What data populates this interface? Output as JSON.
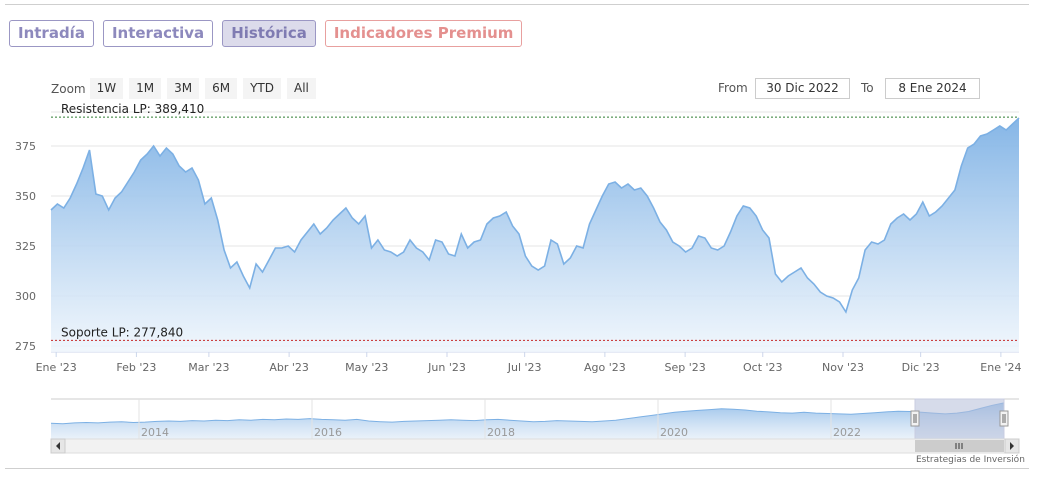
{
  "tabs": [
    {
      "label": "Intradía",
      "style": "normal"
    },
    {
      "label": "Interactiva",
      "style": "normal"
    },
    {
      "label": "Histórica",
      "style": "active"
    },
    {
      "label": "Indicadores Premium",
      "style": "premium"
    }
  ],
  "range_selector": {
    "zoom_label": "Zoom",
    "buttons": [
      "1W",
      "1M",
      "3M",
      "6M",
      "YTD",
      "All"
    ],
    "from_label": "From",
    "from_value": "30 Dic 2022",
    "to_label": "To",
    "to_value": "8 Ene 2024"
  },
  "colors": {
    "line": "#7cb0e4",
    "area_top": "#7fb2e5",
    "area_bottom": "#eef5fc",
    "resistance": "#2e7d32",
    "support": "#c62828",
    "tab_accent": "#9b97c4",
    "premium_accent": "#e8a09f"
  },
  "chart_data": {
    "type": "area",
    "ylim": [
      272,
      392
    ],
    "yticks": [
      275,
      300,
      325,
      350,
      375
    ],
    "xticks": [
      "Ene '23",
      "Feb '23",
      "Mar '23",
      "Abr '23",
      "May '23",
      "Jun '23",
      "Jul '23",
      "Ago '23",
      "Sep '23",
      "Oct '23",
      "Nov '23",
      "Dic '23",
      "Ene '24"
    ],
    "grid": true,
    "lines": [
      {
        "label": "Resistencia LP: 389,410",
        "value": 389.41,
        "style": "dashed"
      },
      {
        "label": "Soporte LP: 277,840",
        "value": 277.84,
        "style": "dashed"
      }
    ],
    "series": [
      {
        "x_start": "2022-12-30",
        "x_end": "2024-01-08",
        "values": [
          343,
          346,
          344,
          349,
          356,
          364,
          373,
          351,
          350,
          343,
          349,
          352,
          357,
          362,
          368,
          371,
          375,
          370,
          374,
          371,
          365,
          362,
          364,
          358,
          346,
          349,
          338,
          323,
          314,
          317,
          310,
          304,
          316,
          312,
          318,
          324,
          324,
          325,
          322,
          328,
          332,
          336,
          331,
          334,
          338,
          341,
          344,
          339,
          336,
          340,
          324,
          328,
          323,
          322,
          320,
          322,
          328,
          324,
          322,
          318,
          328,
          327,
          321,
          320,
          331,
          324,
          327,
          328,
          336,
          339,
          340,
          342,
          335,
          331,
          320,
          315,
          313,
          315,
          328,
          326,
          316,
          319,
          325,
          324,
          336,
          343,
          350,
          356,
          357,
          354,
          356,
          353,
          354,
          350,
          344,
          337,
          333,
          327,
          325,
          322,
          324,
          330,
          329,
          324,
          323,
          325,
          332,
          340,
          345,
          344,
          340,
          333,
          329,
          311,
          307,
          310,
          312,
          314,
          309,
          306,
          302,
          300,
          299,
          297,
          292,
          303,
          309,
          323,
          327,
          326,
          328,
          336,
          339,
          341,
          338,
          341,
          347,
          340,
          342,
          345,
          349,
          353,
          365,
          374,
          376,
          380,
          381,
          383,
          385,
          383,
          386,
          389
        ]
      }
    ]
  },
  "navigator": {
    "year_labels": [
      "2014",
      "2016",
      "2018",
      "2020",
      "2022"
    ],
    "values": [
      310,
      309,
      311,
      312,
      311,
      313,
      314,
      312,
      313,
      315,
      316,
      315,
      317,
      316,
      318,
      317,
      319,
      318,
      320,
      319,
      321,
      320,
      322,
      320,
      319,
      318,
      320,
      316,
      314,
      313,
      315,
      316,
      317,
      318,
      319,
      318,
      317,
      319,
      320,
      318,
      316,
      314,
      315,
      317,
      316,
      315,
      314,
      316,
      318,
      322,
      326,
      330,
      334,
      338,
      341,
      343,
      345,
      347,
      346,
      344,
      341,
      339,
      337,
      336,
      338,
      336,
      335,
      334,
      333,
      335,
      337,
      339,
      341,
      340,
      338,
      336,
      334,
      336,
      340,
      348,
      356,
      362
    ]
  },
  "watermark": "Estrategias de Inversión"
}
